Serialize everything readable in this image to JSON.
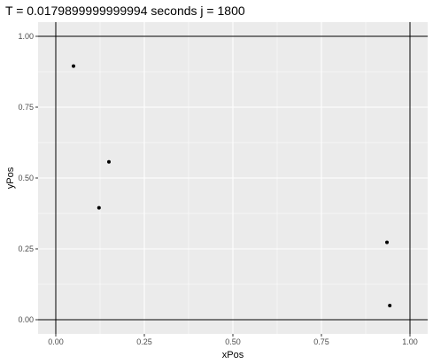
{
  "chart_data": {
    "type": "scatter",
    "title": "T =  0.0179899999999994 seconds j =  1800",
    "xlabel": "xPos",
    "ylabel": "yPos",
    "xlim": [
      -0.05,
      1.05
    ],
    "ylim": [
      -0.05,
      1.05
    ],
    "x_ticks": [
      0,
      0.25,
      0.5,
      0.75,
      1
    ],
    "x_tick_labels": [
      "0.00",
      "0.25",
      "0.50",
      "0.75",
      "1.00"
    ],
    "y_ticks": [
      0,
      0.25,
      0.5,
      0.75,
      1
    ],
    "y_tick_labels": [
      "0.00",
      "0.25",
      "0.50",
      "0.75",
      "1.00"
    ],
    "reference_lines": {
      "horizontal": [
        0,
        1
      ],
      "vertical": [
        0,
        1
      ]
    },
    "grid": true,
    "colors": {
      "panel": "#ebebeb",
      "grid": "#ffffff",
      "point": "#000000",
      "reference": "#000000"
    },
    "points": [
      {
        "x": 0.05,
        "y": 0.895
      },
      {
        "x": 0.15,
        "y": 0.557
      },
      {
        "x": 0.122,
        "y": 0.395
      },
      {
        "x": 0.935,
        "y": 0.273
      },
      {
        "x": 0.943,
        "y": 0.05
      }
    ]
  }
}
